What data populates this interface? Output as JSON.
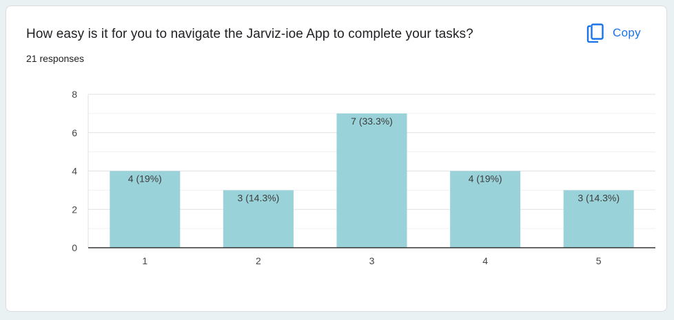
{
  "question": {
    "title": "How easy is it for you to navigate the Jarviz-ioe App to complete your tasks?",
    "responses": "21 responses"
  },
  "copy": {
    "label": "Copy",
    "icon": "copy-icon",
    "color": "#1a73e8"
  },
  "chart_data": {
    "type": "bar",
    "categories": [
      "1",
      "2",
      "3",
      "4",
      "5"
    ],
    "values": [
      4,
      3,
      7,
      4,
      3
    ],
    "data_labels": [
      "4 (19%)",
      "3 (14.3%)",
      "7 (33.3%)",
      "4 (19%)",
      "3 (14.3%)"
    ],
    "ylim": [
      0,
      8
    ],
    "yticks": [
      0,
      2,
      4,
      6,
      8
    ],
    "grid": true,
    "bar_color": "#9ad2d9",
    "title": "",
    "xlabel": "",
    "ylabel": ""
  }
}
